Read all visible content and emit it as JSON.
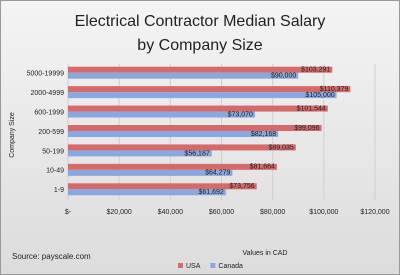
{
  "chart_data": {
    "type": "hbar",
    "title": "Electrical Contractor Median Salary",
    "subtitle": "by Company Size",
    "y_label": "Company Size",
    "x_label": "Values in CAD",
    "source": "Source: payscale.com",
    "categories": [
      "5000-19999",
      "2000-4999",
      "600-1999",
      "200-599",
      "50-199",
      "10-49",
      "1-9"
    ],
    "series": [
      {
        "name": "USA",
        "color": "#d46a6a",
        "values": [
          103291,
          110379,
          101544,
          99096,
          89035,
          81664,
          73756
        ],
        "value_labels": [
          "$103,291",
          "$110,379",
          "$101,544",
          "$99,096",
          "$89,035",
          "$81,664",
          "$73,756"
        ]
      },
      {
        "name": "Canada",
        "color": "#8aa8e0",
        "values": [
          90000,
          105000,
          73070,
          82168,
          56187,
          64279,
          61692
        ],
        "value_labels": [
          "$90,000",
          "$105,000",
          "$73,070",
          "$82,168",
          "$56,187",
          "$64,279",
          "$61,692"
        ]
      }
    ],
    "xlim": [
      0,
      120000
    ],
    "xticks": [
      {
        "value": 0,
        "label": "$-"
      },
      {
        "value": 20000,
        "label": "$20,000"
      },
      {
        "value": 40000,
        "label": "$40,000"
      },
      {
        "value": 60000,
        "label": "$60,000"
      },
      {
        "value": 80000,
        "label": "$80,000"
      },
      {
        "value": 100000,
        "label": "$100,000"
      },
      {
        "value": 120000,
        "label": "$120,000"
      }
    ],
    "grid": true
  }
}
